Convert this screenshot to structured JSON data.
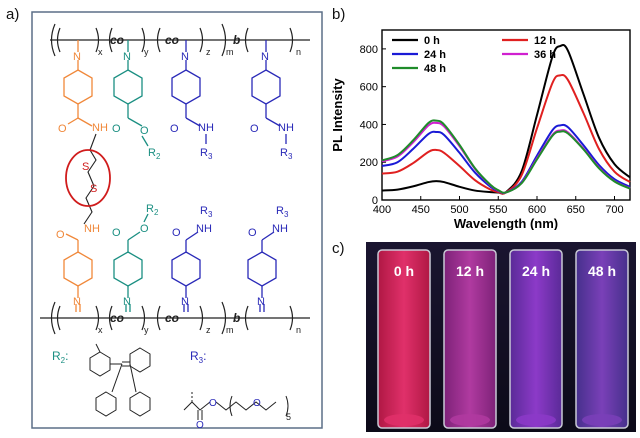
{
  "labels": {
    "a": "a)",
    "b": "b)",
    "c": "c)"
  },
  "colors": {
    "orange": "#f0883a",
    "teal": "#1b8f82",
    "blue": "#2a2ab8",
    "red_circle": "#d01c1c",
    "box_border": "#5b6f87"
  },
  "structure": {
    "backbone_upper": {
      "co1": "co",
      "co2": "co",
      "b": "b",
      "sub_x": "x",
      "sub_y": "y",
      "sub_z": "z",
      "sub_m": "m",
      "sub_n": "n"
    },
    "backbone_lower": {
      "co1": "co",
      "co2": "co",
      "b": "b",
      "sub_x": "x",
      "sub_y": "y",
      "sub_z": "z",
      "sub_m": "m",
      "sub_n": "n"
    },
    "atoms": {
      "N": "N",
      "NH": "NH",
      "O": "O",
      "S": "S",
      "R2": "R",
      "R2_sub": "2",
      "R3": "R",
      "R3_sub": "3"
    },
    "legend": {
      "r2": "R",
      "r2_sub": "2",
      "r2_colon": ":",
      "r3": "R",
      "r3_sub": "3",
      "r3_colon": ":",
      "peg_sub": "5"
    }
  },
  "chart_data": {
    "type": "line",
    "title": "",
    "xlabel": "Wavelength (nm)",
    "ylabel": "PL Intensity",
    "xlim": [
      400,
      720
    ],
    "ylim": [
      0,
      900
    ],
    "xticks": [
      400,
      450,
      500,
      550,
      600,
      650,
      700
    ],
    "yticks": [
      0,
      200,
      400,
      600,
      800
    ],
    "x": [
      400,
      420,
      440,
      460,
      470,
      480,
      500,
      520,
      540,
      550,
      560,
      580,
      600,
      620,
      630,
      640,
      660,
      680,
      700,
      720
    ],
    "series": [
      {
        "name": "0 h",
        "color": "#000000",
        "values": [
          50,
          55,
          72,
          95,
          100,
          95,
          70,
          50,
          42,
          40,
          42,
          150,
          450,
          760,
          815,
          790,
          560,
          330,
          190,
          120
        ]
      },
      {
        "name": "12 h",
        "color": "#e02020",
        "values": [
          140,
          150,
          195,
          255,
          265,
          250,
          180,
          105,
          55,
          42,
          40,
          130,
          380,
          620,
          660,
          635,
          460,
          270,
          150,
          95
        ]
      },
      {
        "name": "24 h",
        "color": "#1a1ad6",
        "values": [
          180,
          200,
          270,
          350,
          360,
          345,
          250,
          145,
          70,
          48,
          40,
          95,
          235,
          370,
          395,
          385,
          290,
          185,
          110,
          70
        ]
      },
      {
        "name": "36 h",
        "color": "#d020d0",
        "values": [
          205,
          230,
          305,
          395,
          408,
          390,
          285,
          165,
          78,
          50,
          40,
          90,
          220,
          345,
          368,
          358,
          272,
          172,
          100,
          62
        ]
      },
      {
        "name": "48 h",
        "color": "#1f8c2a",
        "values": [
          210,
          238,
          315,
          408,
          420,
          400,
          292,
          168,
          80,
          52,
          40,
          88,
          215,
          340,
          362,
          352,
          268,
          168,
          98,
          60
        ]
      }
    ],
    "legend_position": "top"
  },
  "photo": {
    "vials": [
      {
        "label": "0 h",
        "color": "#b01844",
        "glow": "#e0306a"
      },
      {
        "label": "12 h",
        "color": "#7d2278",
        "glow": "#b03aa0"
      },
      {
        "label": "24 h",
        "color": "#5a2a98",
        "glow": "#8c3ac8"
      },
      {
        "label": "48 h",
        "color": "#46308c",
        "glow": "#7a40b8"
      }
    ]
  }
}
